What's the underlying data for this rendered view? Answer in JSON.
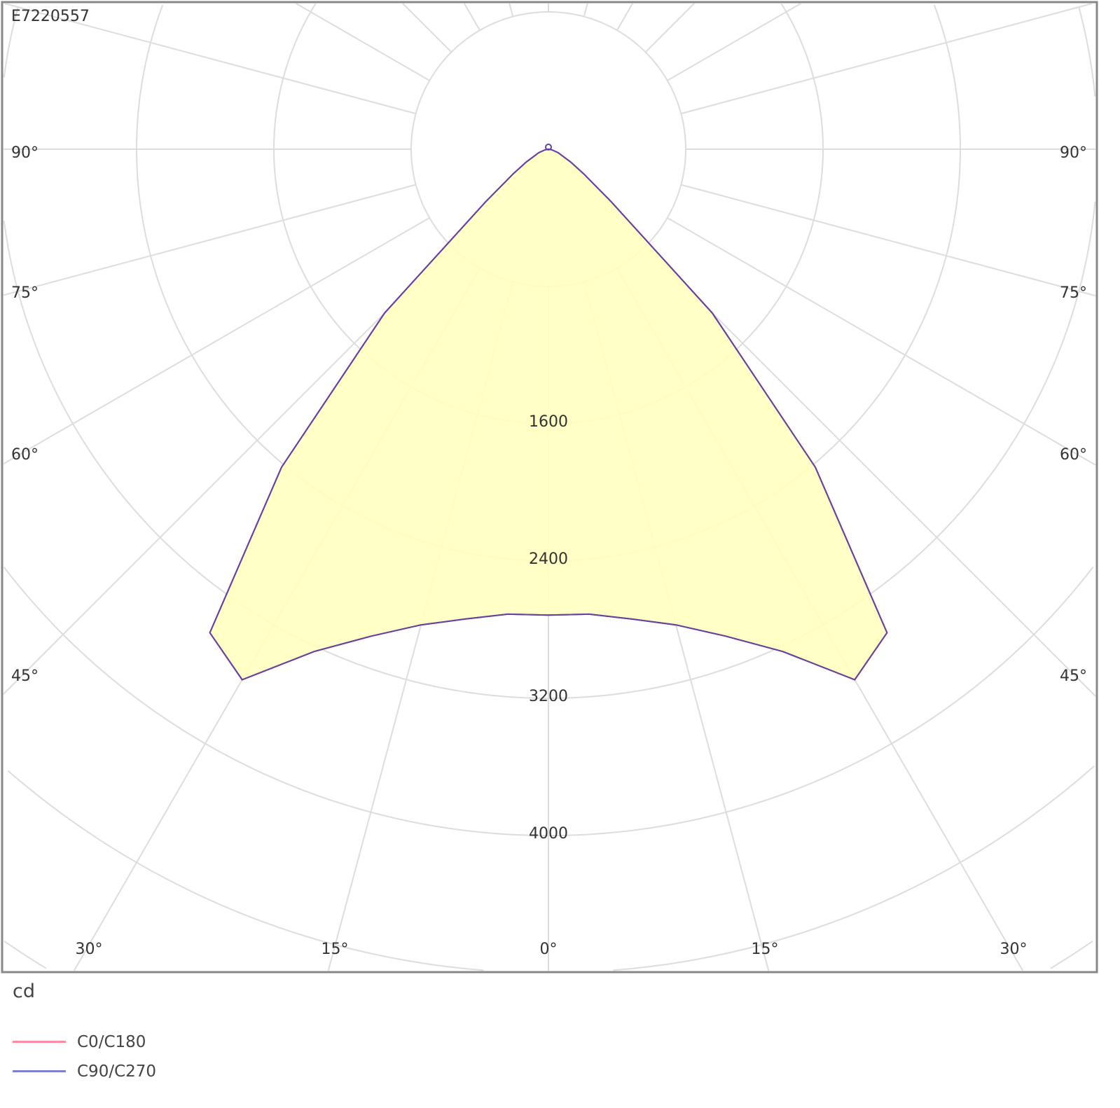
{
  "chart_data": {
    "type": "polar",
    "title": "E7220557",
    "unit_label": "cd",
    "radial_ticks": [
      1600,
      2400,
      3200,
      4000
    ],
    "radial_grid_step": 800,
    "angle_tick_labels": [
      "0°",
      "15°",
      "30°",
      "45°",
      "60°",
      "75°",
      "90°"
    ],
    "grid": true,
    "legend_placement": "bottom-left",
    "series": [
      {
        "name": "C0/C180",
        "color": "#ff8da0",
        "angles": [
          0,
          5,
          10,
          15,
          20,
          25,
          30,
          35,
          40,
          45,
          50,
          55,
          60,
          70,
          80,
          90
        ],
        "values": [
          2715,
          2720,
          2780,
          2870,
          3020,
          3230,
          3570,
          3440,
          2420,
          1350,
          480,
          250,
          150,
          60,
          20,
          0
        ]
      },
      {
        "name": "C90/C270",
        "color": "#8080d0",
        "angles": [
          0,
          5,
          10,
          15,
          20,
          25,
          30,
          35,
          40,
          45,
          50,
          55,
          60,
          70,
          80,
          90
        ],
        "values": [
          2715,
          2720,
          2780,
          2870,
          3020,
          3230,
          3570,
          3440,
          2420,
          1350,
          480,
          250,
          150,
          60,
          20,
          0
        ]
      }
    ],
    "fill_color": "#ffffc0",
    "curve_color": "#6a3fa0"
  }
}
